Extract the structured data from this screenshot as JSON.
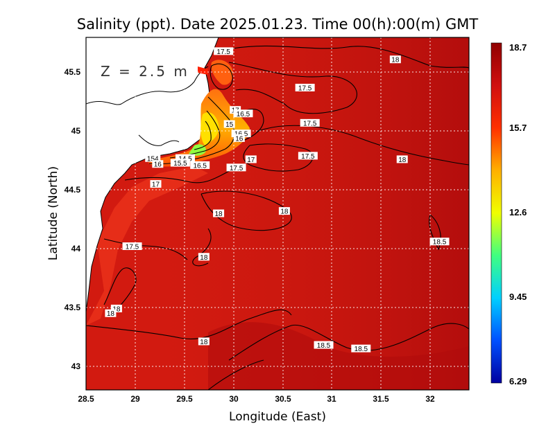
{
  "chart_data": {
    "type": "heatmap",
    "title": "Salinity (ppt). Date 2025.01.23. Time 00(h):00(m) GMT",
    "xlabel": "Longitude (East)",
    "ylabel": "Latitude (North)",
    "annotation": "Z = 2.5 m",
    "xlim": [
      28.5,
      32.4
    ],
    "ylim": [
      42.8,
      45.8
    ],
    "x_ticks": [
      "28.5",
      "29",
      "29.5",
      "30",
      "30.5",
      "31",
      "31.5",
      "32"
    ],
    "y_ticks": [
      "43",
      "43.5",
      "44",
      "44.5",
      "45",
      "45.5"
    ],
    "grid": true,
    "colorbar": {
      "ticks": [
        "18.7",
        "15.7",
        "12.6",
        "9.45",
        "6.29"
      ],
      "min": 6.29,
      "max": 18.7,
      "colors": [
        "#0000a0",
        "#0050ff",
        "#00d0ff",
        "#40ff80",
        "#f0ff00",
        "#ffb000",
        "#ff3000",
        "#d01010",
        "#900000"
      ]
    },
    "contour_labels": [
      {
        "text": "17.5",
        "x": 29.9,
        "y": 45.68
      },
      {
        "text": "18",
        "x": 31.65,
        "y": 45.61
      },
      {
        "text": "17.5",
        "x": 30.73,
        "y": 45.37
      },
      {
        "text": "17",
        "x": 30.02,
        "y": 45.18
      },
      {
        "text": "16.5",
        "x": 30.1,
        "y": 45.15
      },
      {
        "text": "17.5",
        "x": 30.78,
        "y": 45.07
      },
      {
        "text": "15",
        "x": 29.96,
        "y": 45.06
      },
      {
        "text": "16.5",
        "x": 30.08,
        "y": 44.98
      },
      {
        "text": "16",
        "x": 30.06,
        "y": 44.94
      },
      {
        "text": "17.5",
        "x": 30.76,
        "y": 44.79
      },
      {
        "text": "17",
        "x": 30.18,
        "y": 44.76
      },
      {
        "text": "18",
        "x": 31.72,
        "y": 44.76
      },
      {
        "text": "17.5",
        "x": 30.03,
        "y": 44.69
      },
      {
        "text": "154",
        "x": 29.18,
        "y": 44.77
      },
      {
        "text": "14.5",
        "x": 29.51,
        "y": 44.77
      },
      {
        "text": "16",
        "x": 29.23,
        "y": 44.72
      },
      {
        "text": "15.5",
        "x": 29.46,
        "y": 44.73
      },
      {
        "text": "16.5",
        "x": 29.66,
        "y": 44.71
      },
      {
        "text": "17",
        "x": 29.21,
        "y": 44.55
      },
      {
        "text": "18",
        "x": 30.52,
        "y": 44.32
      },
      {
        "text": "18",
        "x": 29.85,
        "y": 44.3
      },
      {
        "text": "18.5",
        "x": 32.1,
        "y": 44.06
      },
      {
        "text": "17.5",
        "x": 28.97,
        "y": 44.02
      },
      {
        "text": "18",
        "x": 29.7,
        "y": 43.93
      },
      {
        "text": "18",
        "x": 28.81,
        "y": 43.49
      },
      {
        "text": "18",
        "x": 28.75,
        "y": 43.45
      },
      {
        "text": "18",
        "x": 29.7,
        "y": 43.21
      },
      {
        "text": "18.5",
        "x": 30.92,
        "y": 43.18
      },
      {
        "text": "18.5",
        "x": 31.3,
        "y": 43.15
      }
    ]
  }
}
